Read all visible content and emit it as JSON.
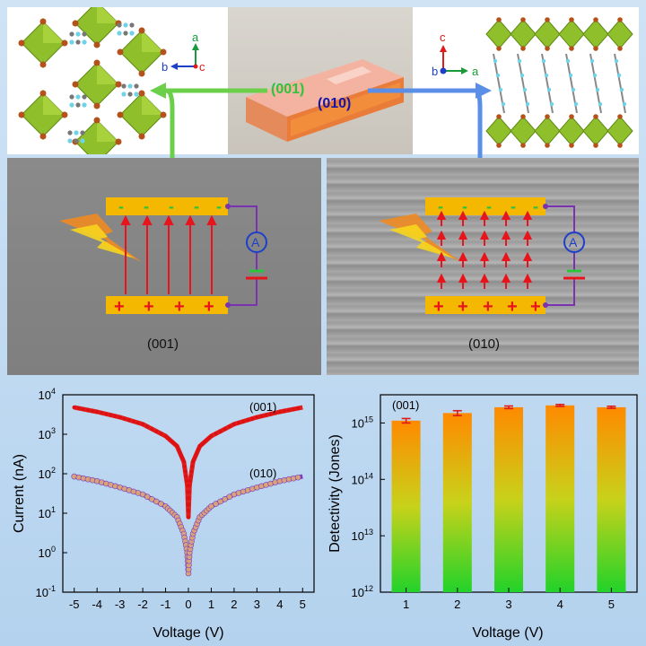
{
  "crystal": {
    "label_001": "(001)",
    "label_010": "(010)"
  },
  "axes_left": {
    "vertical": "a",
    "horizontal": "b",
    "center": "c"
  },
  "axes_right": {
    "vertical": "c",
    "center": "b",
    "horizontal": "a"
  },
  "device_left": {
    "top_charges": [
      "-",
      "-",
      "-",
      "-",
      "-"
    ],
    "bottom_charges": [
      "+",
      "+",
      "+",
      "+"
    ],
    "ammeter": "A",
    "caption": "(001)"
  },
  "device_right": {
    "top_charges": [
      "-",
      "-",
      "-",
      "-",
      "-"
    ],
    "bottom_charges": [
      "+",
      "+",
      "+",
      "+",
      "+"
    ],
    "ammeter": "A",
    "caption": "(010)"
  },
  "colors": {
    "electrode": "#f5b800",
    "arrow": "#e8141c",
    "green_arrow": "#6ccf4a",
    "blue_arrow": "#5b8ee6",
    "curve_001": "#e02020",
    "curve_010": "#d8a27a"
  },
  "chart_data": [
    {
      "type": "line",
      "xlabel": "Voltage (V)",
      "ylabel": "Current (nA)",
      "xlim": [
        -5.5,
        5.5
      ],
      "ylim_log10": [
        -1,
        4
      ],
      "x_ticks": [
        "-5",
        "-4",
        "-3",
        "-2",
        "-1",
        "0",
        "1",
        "2",
        "3",
        "4",
        "5"
      ],
      "y_ticks": [
        {
          "base": "10",
          "exp": "4"
        },
        {
          "base": "10",
          "exp": "3"
        },
        {
          "base": "10",
          "exp": "2"
        },
        {
          "base": "10",
          "exp": "1"
        },
        {
          "base": "10",
          "exp": "0"
        },
        {
          "base": "10",
          "exp": "-1"
        }
      ],
      "series": [
        {
          "name": "(001)",
          "x": [
            -5,
            -4,
            -3,
            -2,
            -1,
            -0.5,
            -0.2,
            -0.05,
            0,
            0.05,
            0.2,
            0.5,
            1,
            2,
            3,
            4,
            5
          ],
          "y": [
            4800,
            3700,
            2700,
            1800,
            900,
            500,
            200,
            50,
            8,
            50,
            200,
            500,
            900,
            1800,
            2700,
            3700,
            4800
          ]
        },
        {
          "name": "(010)",
          "x": [
            -5,
            -4,
            -3,
            -2,
            -1,
            -0.5,
            -0.2,
            -0.05,
            0,
            0.05,
            0.2,
            0.5,
            1,
            2,
            3,
            4,
            5
          ],
          "y": [
            85,
            65,
            45,
            30,
            15,
            8,
            3,
            1,
            0.3,
            1,
            3,
            8,
            15,
            30,
            45,
            65,
            85
          ]
        }
      ]
    },
    {
      "type": "bar",
      "xlabel": "Voltage (V)",
      "ylabel": "Detectivity (Jones)",
      "annotation": "(001)",
      "categories": [
        "1",
        "2",
        "3",
        "4",
        "5"
      ],
      "values": [
        1100000000000000.0,
        1500000000000000.0,
        1900000000000000.0,
        2050000000000000.0,
        1900000000000000.0
      ],
      "errors": [
        100000000000000.0,
        150000000000000.0,
        100000000000000.0,
        80000000000000.0,
        80000000000000.0
      ],
      "ylim_log10": [
        12,
        15.5
      ],
      "y_ticks": [
        {
          "base": "10",
          "exp": "15"
        },
        {
          "base": "10",
          "exp": "14"
        },
        {
          "base": "10",
          "exp": "13"
        },
        {
          "base": "10",
          "exp": "12"
        }
      ]
    }
  ]
}
